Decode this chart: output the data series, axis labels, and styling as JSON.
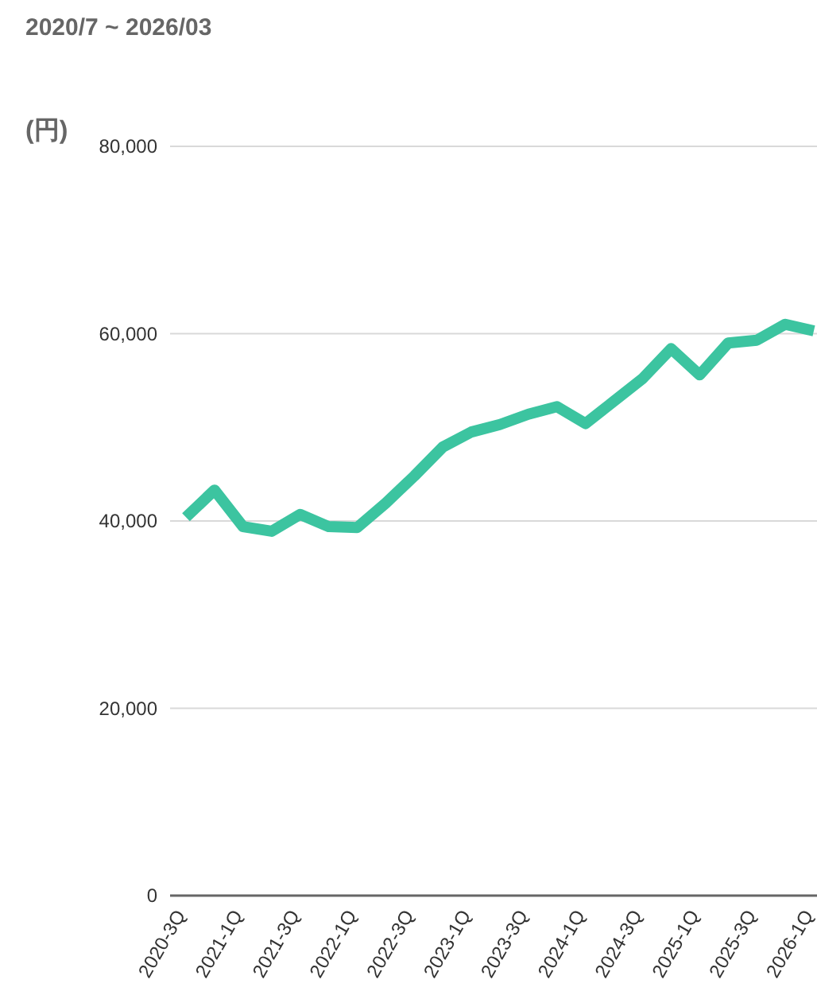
{
  "chart_data": {
    "type": "line",
    "title": "2020/7 ~ 2026/03",
    "ylabel": "(円)",
    "categories": [
      "2020-3Q",
      null,
      "2021-1Q",
      null,
      "2021-3Q",
      null,
      "2022-1Q",
      null,
      "2022-3Q",
      null,
      "2023-1Q",
      null,
      "2023-3Q",
      null,
      "2024-1Q",
      null,
      "2024-3Q",
      null,
      "2025-1Q",
      null,
      "2025-3Q",
      null,
      "2026-1Q"
    ],
    "series": [
      {
        "color": "#3cc4a0",
        "values": [
          40400,
          43300,
          39400,
          38900,
          40700,
          39400,
          39300,
          41900,
          44800,
          47900,
          49500,
          50300,
          51400,
          52200,
          50400,
          52800,
          55200,
          58400,
          55600,
          59000,
          59300,
          61000,
          60300
        ]
      }
    ],
    "ylim": [
      0,
      80000
    ],
    "yticks": [
      {
        "value": 0,
        "label": "0"
      },
      {
        "value": 20000,
        "label": "20,000"
      },
      {
        "value": 40000,
        "label": "40,000"
      },
      {
        "value": 60000,
        "label": "60,000"
      },
      {
        "value": 80000,
        "label": "80,000"
      }
    ],
    "grid": "y",
    "marker": "none",
    "line_style": "solid"
  }
}
